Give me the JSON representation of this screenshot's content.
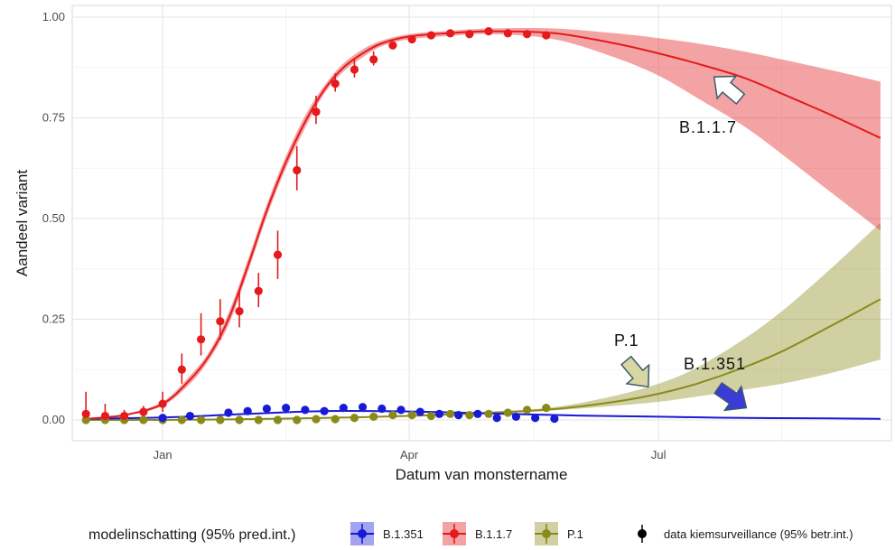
{
  "chart_data": {
    "type": "line",
    "xlabel": "Datum van monstername",
    "ylabel": "Aandeel variant",
    "x_ticks": [
      "2021-01-01",
      "2021-04-01",
      "2021-07-01"
    ],
    "x_tick_labels": [
      "Jan",
      "Apr",
      "Jul"
    ],
    "xlim": [
      "2020-11-29",
      "2021-09-24"
    ],
    "ylim": [
      0,
      1
    ],
    "y_ticks": [
      0,
      0.25,
      0.5,
      0.75,
      1.0
    ],
    "y_tick_labels": [
      "0.00",
      "0.25",
      "0.50",
      "0.75",
      "1.00"
    ],
    "grid": true,
    "legend_position": "bottom",
    "legend_title": "modelinschatting (95% pred.int.)",
    "legend_data_label": "data kiemsurveillance (95% betr.int.)",
    "colors": {
      "B.1.351": "#1a1ad6",
      "B.1.1.7": "#e41a1c",
      "P.1": "#8a8a1a"
    },
    "series": [
      {
        "name": "B.1.351",
        "model": {
          "x": [
            "2020-12-04",
            "2021-01-01",
            "2021-02-01",
            "2021-03-01",
            "2021-04-01",
            "2021-05-01",
            "2021-06-01",
            "2021-07-01",
            "2021-08-01",
            "2021-09-01",
            "2021-09-20"
          ],
          "y": [
            0.003,
            0.006,
            0.015,
            0.022,
            0.021,
            0.016,
            0.011,
            0.008,
            0.005,
            0.004,
            0.003
          ],
          "lower": [
            0.002,
            0.005,
            0.013,
            0.02,
            0.019,
            0.014,
            0.009,
            0.006,
            0.004,
            0.003,
            0.002
          ],
          "upper": [
            0.004,
            0.007,
            0.017,
            0.024,
            0.023,
            0.018,
            0.013,
            0.01,
            0.007,
            0.005,
            0.004
          ]
        },
        "observed": {
          "x": [
            "2021-01-01",
            "2021-01-11",
            "2021-01-25",
            "2021-02-01",
            "2021-02-08",
            "2021-02-15",
            "2021-02-22",
            "2021-03-01",
            "2021-03-08",
            "2021-03-15",
            "2021-03-22",
            "2021-03-29",
            "2021-04-05",
            "2021-04-12",
            "2021-04-19",
            "2021-04-26",
            "2021-05-03",
            "2021-05-10",
            "2021-05-17",
            "2021-05-24"
          ],
          "y": [
            0.005,
            0.01,
            0.018,
            0.022,
            0.028,
            0.03,
            0.025,
            0.022,
            0.03,
            0.032,
            0.028,
            0.025,
            0.02,
            0.015,
            0.012,
            0.015,
            0.005,
            0.008,
            0.005,
            0.003
          ]
        }
      },
      {
        "name": "B.1.1.7",
        "model": {
          "x": [
            "2020-12-04",
            "2020-12-18",
            "2021-01-01",
            "2021-01-11",
            "2021-01-18",
            "2021-01-25",
            "2021-02-01",
            "2021-02-08",
            "2021-02-15",
            "2021-02-22",
            "2021-03-01",
            "2021-03-08",
            "2021-03-15",
            "2021-03-22",
            "2021-04-01",
            "2021-04-15",
            "2021-05-01",
            "2021-05-24",
            "2021-06-15",
            "2021-07-01",
            "2021-07-15",
            "2021-08-01",
            "2021-08-15",
            "2021-09-01",
            "2021-09-20"
          ],
          "y": [
            0.003,
            0.012,
            0.04,
            0.1,
            0.16,
            0.25,
            0.38,
            0.52,
            0.64,
            0.74,
            0.82,
            0.875,
            0.91,
            0.935,
            0.952,
            0.96,
            0.965,
            0.96,
            0.935,
            0.91,
            0.885,
            0.85,
            0.81,
            0.76,
            0.7
          ],
          "lower": [
            0.002,
            0.01,
            0.035,
            0.09,
            0.15,
            0.235,
            0.365,
            0.505,
            0.625,
            0.725,
            0.81,
            0.865,
            0.9,
            0.928,
            0.945,
            0.953,
            0.958,
            0.945,
            0.9,
            0.855,
            0.8,
            0.73,
            0.66,
            0.57,
            0.47
          ],
          "upper": [
            0.004,
            0.014,
            0.045,
            0.11,
            0.17,
            0.265,
            0.395,
            0.535,
            0.655,
            0.755,
            0.83,
            0.885,
            0.92,
            0.942,
            0.958,
            0.966,
            0.972,
            0.972,
            0.96,
            0.948,
            0.935,
            0.915,
            0.895,
            0.87,
            0.84
          ]
        },
        "observed": {
          "x": [
            "2020-12-04",
            "2020-12-11",
            "2020-12-18",
            "2020-12-25",
            "2021-01-01",
            "2021-01-08",
            "2021-01-15",
            "2021-01-22",
            "2021-01-29",
            "2021-02-05",
            "2021-02-12",
            "2021-02-19",
            "2021-02-26",
            "2021-03-05",
            "2021-03-12",
            "2021-03-19",
            "2021-03-26",
            "2021-04-02",
            "2021-04-09",
            "2021-04-16",
            "2021-04-23",
            "2021-04-30",
            "2021-05-07",
            "2021-05-14",
            "2021-05-21"
          ],
          "y": [
            0.015,
            0.01,
            0.01,
            0.02,
            0.04,
            0.125,
            0.2,
            0.245,
            0.27,
            0.32,
            0.41,
            0.62,
            0.765,
            0.835,
            0.87,
            0.895,
            0.93,
            0.945,
            0.955,
            0.96,
            0.958,
            0.965,
            0.96,
            0.958,
            0.955
          ],
          "lower": [
            0.0,
            0.0,
            0.0,
            0.005,
            0.02,
            0.09,
            0.16,
            0.2,
            0.23,
            0.28,
            0.35,
            0.57,
            0.735,
            0.815,
            0.85,
            0.88,
            0.922,
            0.94,
            0.95,
            0.955,
            0.953,
            0.96,
            0.955,
            0.953,
            0.95
          ],
          "upper": [
            0.07,
            0.04,
            0.025,
            0.035,
            0.07,
            0.165,
            0.265,
            0.3,
            0.32,
            0.365,
            0.47,
            0.68,
            0.805,
            0.86,
            0.895,
            0.915,
            0.94,
            0.952,
            0.962,
            0.965,
            0.963,
            0.97,
            0.965,
            0.963,
            0.96
          ]
        }
      },
      {
        "name": "P.1",
        "model": {
          "x": [
            "2020-12-04",
            "2021-01-01",
            "2021-02-01",
            "2021-03-01",
            "2021-04-01",
            "2021-05-01",
            "2021-05-24",
            "2021-06-15",
            "2021-07-01",
            "2021-07-15",
            "2021-08-01",
            "2021-08-15",
            "2021-09-01",
            "2021-09-20"
          ],
          "y": [
            0.0,
            0.0,
            0.002,
            0.005,
            0.01,
            0.018,
            0.027,
            0.045,
            0.065,
            0.09,
            0.13,
            0.17,
            0.23,
            0.3
          ],
          "lower": [
            0.0,
            0.0,
            0.001,
            0.004,
            0.009,
            0.016,
            0.024,
            0.035,
            0.045,
            0.058,
            0.075,
            0.09,
            0.115,
            0.15
          ],
          "upper": [
            0.0,
            0.0,
            0.003,
            0.006,
            0.012,
            0.021,
            0.032,
            0.06,
            0.09,
            0.13,
            0.2,
            0.27,
            0.37,
            0.49
          ]
        },
        "observed": {
          "x": [
            "2020-12-04",
            "2020-12-11",
            "2020-12-18",
            "2020-12-25",
            "2021-01-01",
            "2021-01-08",
            "2021-01-15",
            "2021-01-22",
            "2021-01-29",
            "2021-02-05",
            "2021-02-12",
            "2021-02-19",
            "2021-02-26",
            "2021-03-05",
            "2021-03-12",
            "2021-03-19",
            "2021-03-26",
            "2021-04-02",
            "2021-04-09",
            "2021-04-16",
            "2021-04-23",
            "2021-04-30",
            "2021-05-07",
            "2021-05-14",
            "2021-05-21"
          ],
          "y": [
            0.0,
            0.0,
            0.0,
            0.0,
            0.0,
            0.0,
            0.0,
            0.0,
            0.0,
            0.0,
            0.0,
            0.0,
            0.002,
            0.002,
            0.005,
            0.008,
            0.012,
            0.012,
            0.01,
            0.015,
            0.012,
            0.015,
            0.018,
            0.025,
            0.03
          ]
        }
      }
    ],
    "annotations": [
      {
        "text": "B.1.1.7",
        "series": "B.1.1.7"
      },
      {
        "text": "P.1",
        "series": "P.1"
      },
      {
        "text": "B.1.351",
        "series": "B.1.351"
      }
    ]
  }
}
